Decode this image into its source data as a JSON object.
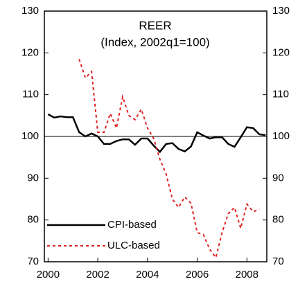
{
  "chart_data": {
    "type": "line",
    "title": "REER",
    "subtitle": "(Index, 2002q1=100)",
    "xlim": [
      1999.85,
      2008.8
    ],
    "xticks": [
      2000,
      2002,
      2004,
      2006,
      2008
    ],
    "ylim": [
      70,
      130
    ],
    "yticks": [
      70,
      80,
      90,
      100,
      110,
      120,
      130
    ],
    "y2lim": [
      70,
      130
    ],
    "y2ticks": [
      70,
      80,
      90,
      100,
      110,
      120,
      130
    ],
    "hline": 100,
    "series": [
      {
        "name": "CPI-based",
        "color": "#000000",
        "dash": false,
        "x": [
          2000,
          2000.25,
          2000.5,
          2000.75,
          2001,
          2001.25,
          2001.5,
          2001.75,
          2002,
          2002.25,
          2002.5,
          2002.75,
          2003,
          2003.25,
          2003.5,
          2003.75,
          2004,
          2004.25,
          2004.5,
          2004.75,
          2005,
          2005.25,
          2005.5,
          2005.75,
          2006,
          2006.25,
          2006.5,
          2006.75,
          2007,
          2007.25,
          2007.5,
          2007.75,
          2008,
          2008.25,
          2008.5,
          2008.75
        ],
        "values": [
          105.3,
          104.5,
          104.8,
          104.6,
          104.6,
          101,
          100,
          100.7,
          100,
          98.2,
          98.2,
          98.9,
          99.3,
          99.3,
          98,
          99.5,
          99.5,
          97.8,
          96.3,
          98.2,
          98.4,
          97,
          96.4,
          97.6,
          101,
          100.2,
          99.5,
          99.8,
          99.8,
          98.2,
          97.5,
          99.8,
          102.2,
          102,
          100.5,
          100.3
        ]
      },
      {
        "name": "ULC-based",
        "color": "#e02020",
        "dash": true,
        "x": [
          2001.25,
          2001.5,
          2001.75,
          2002,
          2002.25,
          2002.5,
          2002.75,
          2003,
          2003.25,
          2003.5,
          2003.75,
          2004,
          2004.25,
          2004.5,
          2004.75,
          2005,
          2005.25,
          2005.5,
          2005.75,
          2006,
          2006.25,
          2006.5,
          2006.75,
          2007,
          2007.25,
          2007.5,
          2007.75,
          2008,
          2008.25,
          2008.5
        ],
        "values": [
          118.5,
          114,
          115.5,
          101,
          101,
          105.5,
          102,
          109.5,
          105,
          104,
          106.5,
          102,
          99.5,
          94.5,
          91,
          85,
          83,
          85.5,
          84,
          77,
          76.5,
          73,
          71,
          77,
          81.5,
          83,
          78,
          83.8,
          82,
          82.5
        ]
      }
    ]
  }
}
